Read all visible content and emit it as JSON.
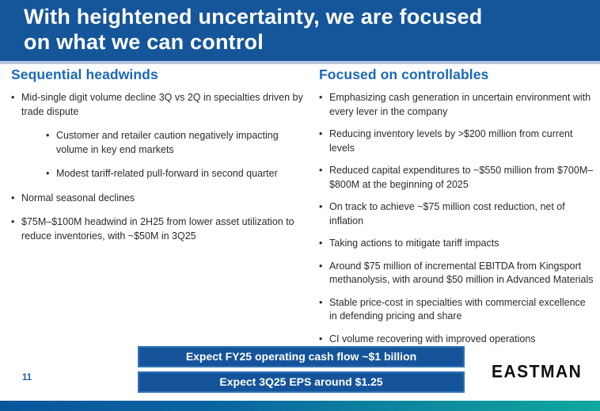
{
  "title_lines": [
    "With heightened uncertainty, we are focused",
    "on what we can control"
  ],
  "left_column": {
    "heading": "Sequential headwinds",
    "bullets": [
      {
        "level": 1,
        "text": "Mid-single digit volume decline 3Q vs 2Q in specialties driven by trade dispute"
      },
      {
        "level": 2,
        "text": "Customer and retailer caution negatively impacting volume in key end markets"
      },
      {
        "level": 2,
        "text": "Modest tariff-related pull-forward in second quarter"
      },
      {
        "level": 1,
        "text": "Normal seasonal declines"
      },
      {
        "level": 1,
        "text": "$75M–$100M headwind in 2H25 from lower asset utilization to reduce inventories, with ~$50M in 3Q25"
      }
    ]
  },
  "right_column": {
    "heading": "Focused on controllables",
    "bullets": [
      {
        "level": 1,
        "text": "Emphasizing cash generation in uncertain environment with every lever in the company"
      },
      {
        "level": 1,
        "text": "Reducing inventory levels by >$200 million from current levels"
      },
      {
        "level": 1,
        "text": "Reduced capital expenditures to ~$550 million from $700M–$800M at the beginning of 2025"
      },
      {
        "level": 1,
        "text": "On track to achieve ~$75 million cost reduction, net of inflation"
      },
      {
        "level": 1,
        "text": "Taking actions to mitigate tariff impacts"
      },
      {
        "level": 1,
        "text": "Around $75 million of incremental EBITDA from Kingsport methanolysis, with around $50 million in Advanced Materials"
      },
      {
        "level": 1,
        "text": "Stable price-cost in specialties with commercial excellence in defending pricing and share"
      },
      {
        "level": 1,
        "text": "CI volume recovering with improved operations"
      }
    ]
  },
  "banners": [
    "Expect FY25 operating cash flow ~$1 billion",
    "Expect 3Q25 EPS around $1.25"
  ],
  "page_number": "11",
  "logo_text": "EASTMAN",
  "colors": {
    "header_background": "#15569B",
    "header_underline": "#b6c5de",
    "section_heading": "#1b69b5",
    "body_text": "#2b2b2b",
    "banner_background": "#15549A",
    "banner_border": "#3272b4",
    "banner_text": "#ffffff",
    "page_number": "#1e5fa8",
    "logo_text": "#0d0d0d",
    "strip_gradient_left": "#09559B",
    "strip_gradient_right": "#0FA89E"
  }
}
